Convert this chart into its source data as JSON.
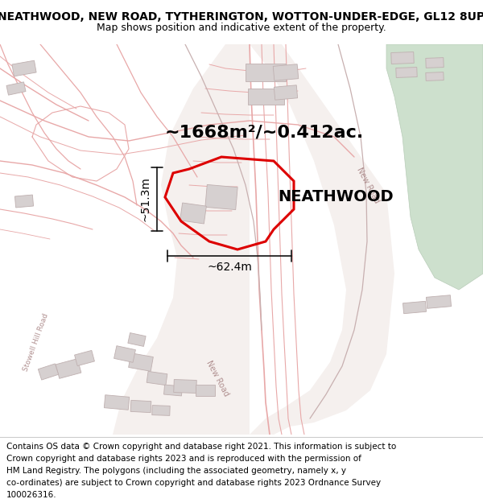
{
  "title_line1": "NEATHWOOD, NEW ROAD, TYTHERINGTON, WOTTON-UNDER-EDGE, GL12 8UP",
  "title_line2": "Map shows position and indicative extent of the property.",
  "area_text": "~1668m²/~0.412ac.",
  "property_name": "NEATHWOOD",
  "dim_height": "~51.3m",
  "dim_width": "~62.4m",
  "footer_lines": [
    "Contains OS data © Crown copyright and database right 2021. This information is subject to",
    "Crown copyright and database rights 2023 and is reproduced with the permission of",
    "HM Land Registry. The polygons (including the associated geometry, namely x, y",
    "co-ordinates) are subject to Crown copyright and database rights 2023 Ordnance Survey",
    "100026316."
  ],
  "map_bg": "#f7f0f0",
  "road_color": "#e8a8a8",
  "property_outline_color": "#dd0000",
  "dim_line_color": "#111111",
  "green_area_color": "#cde0cd",
  "building_fill": "#d6d0d0",
  "building_edge": "#bfb0b0",
  "white_road": "#f8f4f4",
  "title_fontsize": 10,
  "subtitle_fontsize": 9,
  "area_fontsize": 16,
  "property_name_fontsize": 14,
  "dim_fontsize": 10,
  "footer_fontsize": 7.5,
  "road_label_color": "#b09090",
  "road_label_size": 7
}
